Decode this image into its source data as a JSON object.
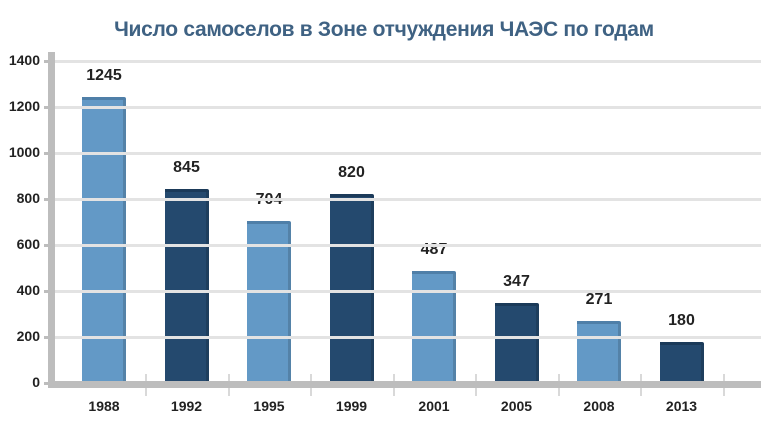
{
  "title": "Число самоселов в Зоне отчуждения ЧАЭС по годам",
  "colors": {
    "light_bar": "#6399c6",
    "dark_bar": "#24496e",
    "title": "#3f6283",
    "axis": "#bdbdbd",
    "grid": "#e3e3e3"
  },
  "chart_data": {
    "type": "bar",
    "title": "Число самоселов в Зоне отчуждения ЧАЭС по годам",
    "xlabel": "",
    "ylabel": "",
    "categories": [
      "1988",
      "1992",
      "1995",
      "1999",
      "2001",
      "2005",
      "2008",
      "2013"
    ],
    "values": [
      1245,
      845,
      704,
      820,
      487,
      347,
      271,
      180
    ],
    "value_labels": [
      "1245",
      "845",
      "704",
      "820",
      "487",
      "347",
      "271",
      "180"
    ],
    "bar_colors": [
      "#6399c6",
      "#24496e",
      "#6399c6",
      "#24496e",
      "#6399c6",
      "#24496e",
      "#6399c6",
      "#24496e"
    ],
    "ylim": [
      0,
      1400
    ],
    "yticks": [
      "0",
      "200",
      "400",
      "600",
      "800",
      "1000",
      "1200",
      "1400"
    ],
    "grid": true,
    "legend": null
  }
}
